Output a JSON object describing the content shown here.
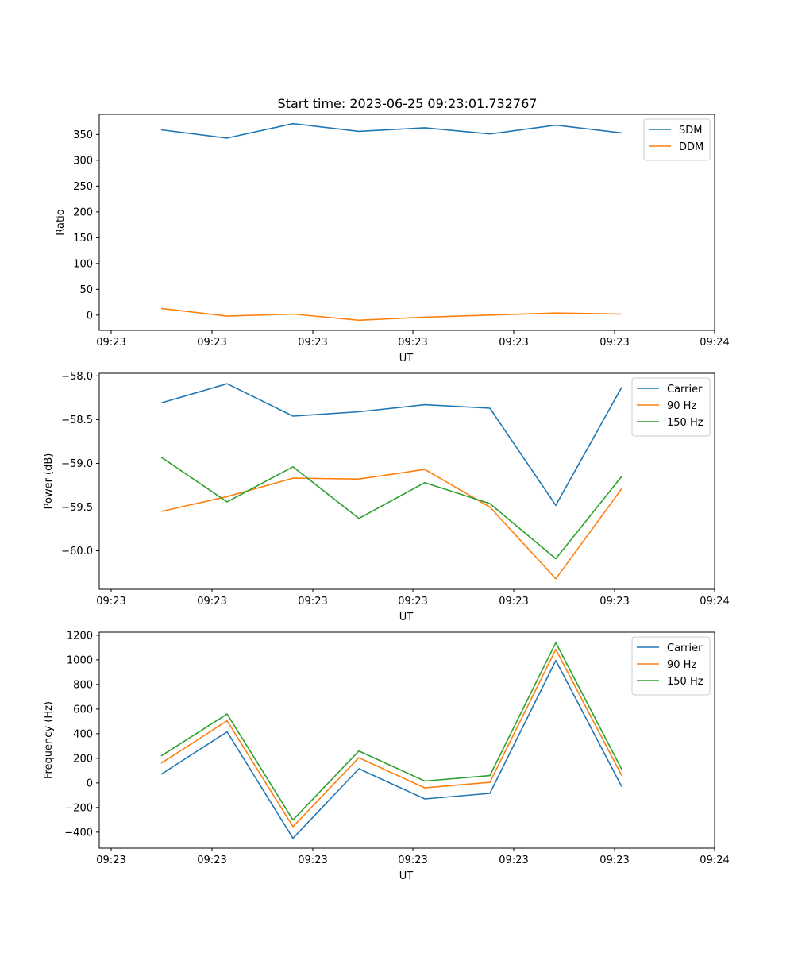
{
  "title": "Start time: 2023-06-25 09:23:01.732767",
  "chart_data": [
    {
      "type": "line",
      "xlabel": "UT",
      "ylabel": "Ratio",
      "x_tick_labels": [
        "09:23",
        "09:23",
        "09:23",
        "09:23",
        "09:23",
        "09:23",
        "09:24"
      ],
      "y_ticks": [
        0,
        50,
        100,
        150,
        200,
        250,
        300,
        350
      ],
      "y_tick_labels": [
        "0",
        "50",
        "100",
        "150",
        "200",
        "250",
        "300",
        "350"
      ],
      "ylim": [
        -29.5,
        389
      ],
      "legend": "top-right",
      "grid": false,
      "series": [
        {
          "name": "SDM",
          "color": "#1f77b4",
          "values": [
            359,
            343,
            371,
            356,
            363,
            351,
            368,
            353
          ]
        },
        {
          "name": "DDM",
          "color": "#ff7f0e",
          "values": [
            13,
            -2,
            2,
            -10,
            -4,
            0,
            4,
            2
          ]
        }
      ]
    },
    {
      "type": "line",
      "xlabel": "UT",
      "ylabel": "Power (dB)",
      "x_tick_labels": [
        "09:23",
        "09:23",
        "09:23",
        "09:23",
        "09:23",
        "09:23",
        "09:24"
      ],
      "y_ticks": [
        -60.0,
        -59.5,
        -59.0,
        -58.5,
        -58.0
      ],
      "y_tick_labels": [
        "−60.0",
        "−59.5",
        "−59.0",
        "−58.5",
        "−58.0"
      ],
      "ylim": [
        -60.44,
        -57.97
      ],
      "legend": "top-right",
      "grid": false,
      "series": [
        {
          "name": "Carrier",
          "color": "#1f77b4",
          "values": [
            -58.31,
            -58.09,
            -58.46,
            -58.41,
            -58.33,
            -58.37,
            -59.48,
            -58.13
          ]
        },
        {
          "name": "90 Hz",
          "color": "#ff7f0e",
          "values": [
            -59.55,
            -59.38,
            -59.17,
            -59.18,
            -59.07,
            -59.5,
            -60.32,
            -59.29
          ]
        },
        {
          "name": "150 Hz",
          "color": "#2ca02c",
          "values": [
            -58.93,
            -59.44,
            -59.04,
            -59.63,
            -59.22,
            -59.46,
            -60.09,
            -59.15
          ]
        }
      ]
    },
    {
      "type": "line",
      "xlabel": "UT",
      "ylabel": "Frequency (Hz)",
      "x_tick_labels": [
        "09:23",
        "09:23",
        "09:23",
        "09:23",
        "09:23",
        "09:23",
        "09:24"
      ],
      "y_ticks": [
        -400,
        -200,
        0,
        200,
        400,
        600,
        800,
        1000,
        1200
      ],
      "y_tick_labels": [
        "−400",
        "−200",
        "0",
        "200",
        "400",
        "600",
        "800",
        "1000",
        "1200"
      ],
      "ylim": [
        -530,
        1225
      ],
      "legend": "top-right",
      "grid": false,
      "series": [
        {
          "name": "Carrier",
          "color": "#1f77b4",
          "values": [
            70,
            415,
            -450,
            115,
            -130,
            -85,
            995,
            -30
          ]
        },
        {
          "name": "90 Hz",
          "color": "#ff7f0e",
          "values": [
            160,
            505,
            -355,
            205,
            -40,
            5,
            1085,
            60
          ]
        },
        {
          "name": "150 Hz",
          "color": "#2ca02c",
          "values": [
            220,
            560,
            -300,
            260,
            15,
            60,
            1140,
            110
          ]
        }
      ]
    }
  ]
}
